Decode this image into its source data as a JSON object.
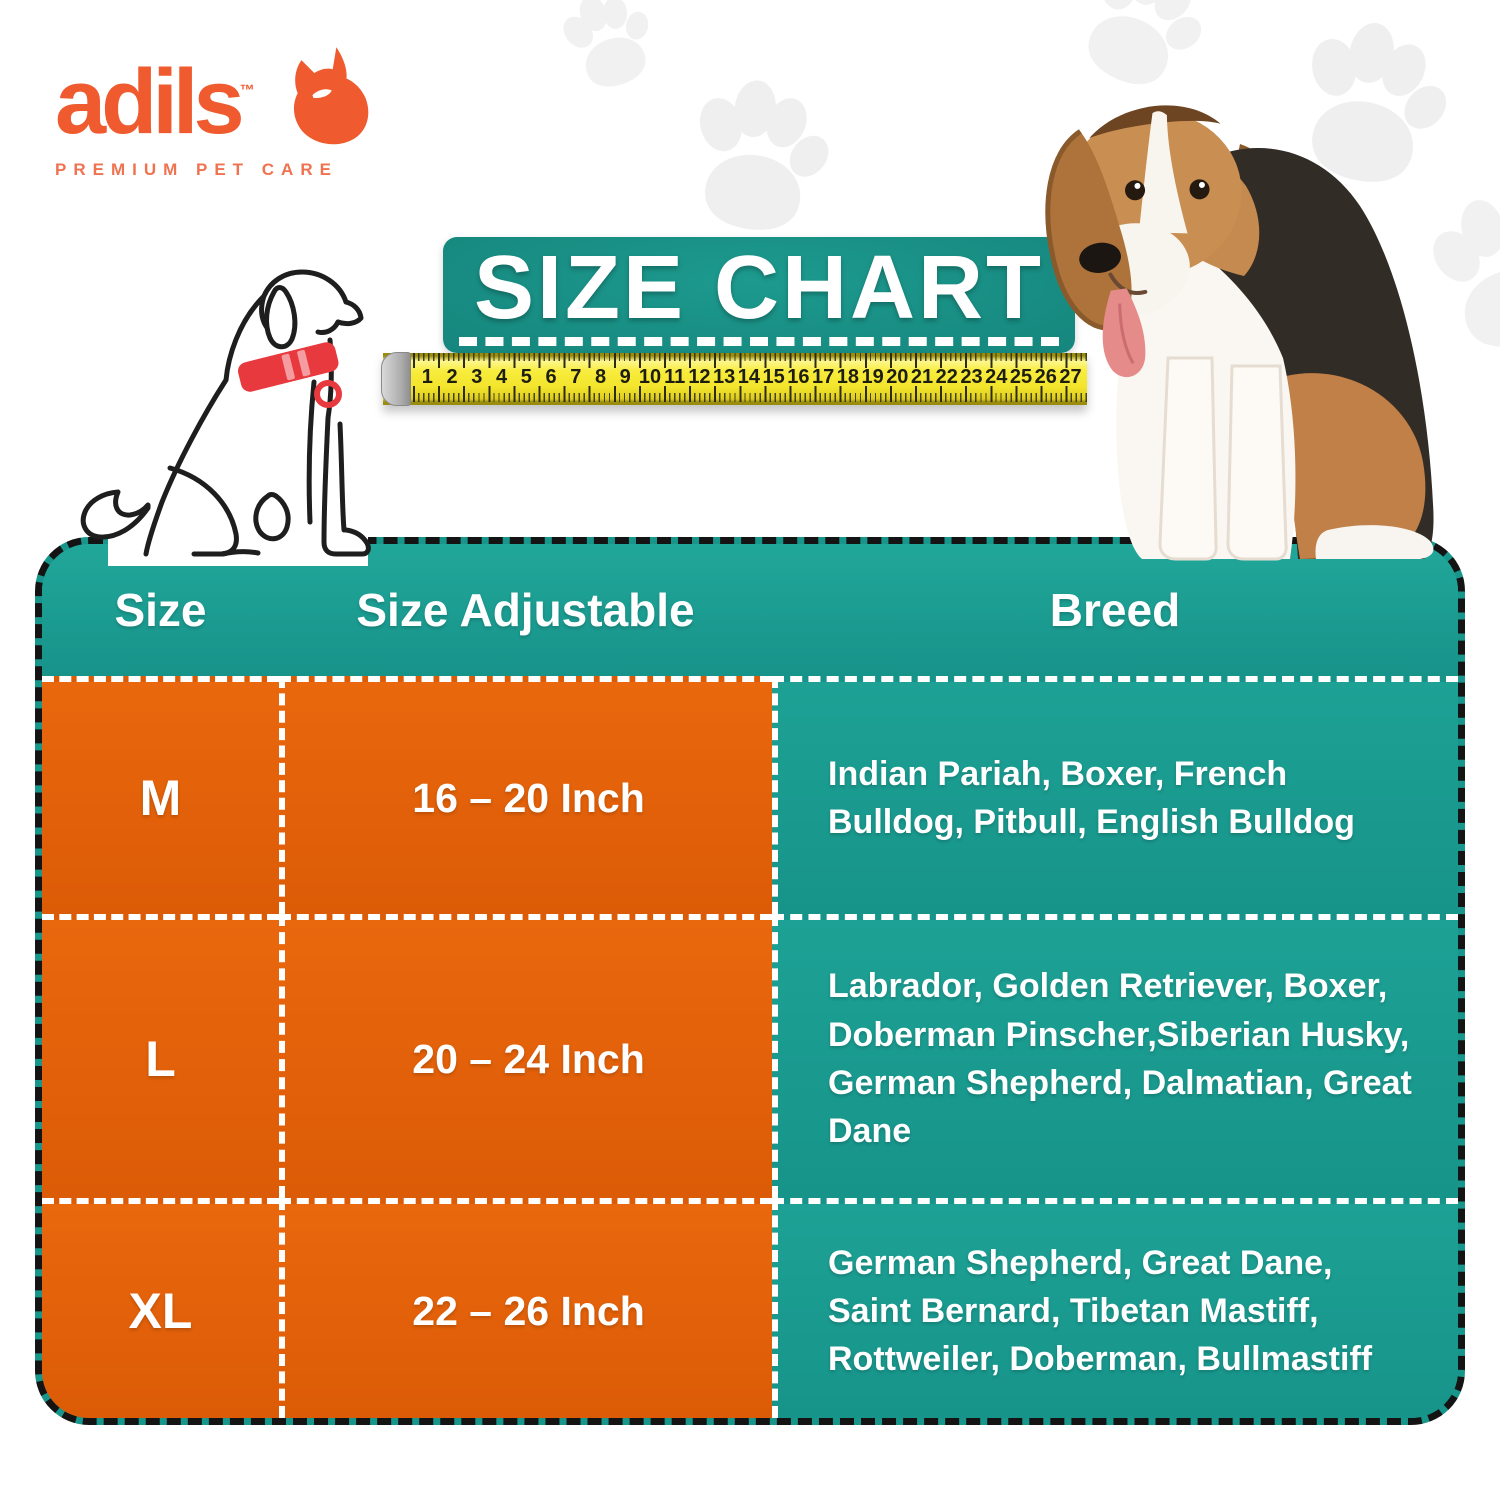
{
  "brand": {
    "name": "adils",
    "tm": "™",
    "tagline": "PREMIUM PET CARE"
  },
  "banner": {
    "title": "SIZE CHART"
  },
  "ruler": {
    "numbers": [
      "1",
      "2",
      "3",
      "4",
      "5",
      "6",
      "7",
      "8",
      "9",
      "10",
      "11",
      "12",
      "13",
      "14",
      "15",
      "16",
      "17",
      "18",
      "19",
      "20",
      "21",
      "22",
      "23",
      "24",
      "25",
      "26",
      "27"
    ]
  },
  "table": {
    "headers": [
      "Size",
      "Size Adjustable",
      "Breed"
    ],
    "rows": [
      {
        "size": "M",
        "adjustable": "16 – 20 Inch",
        "breed": "Indian Pariah, Boxer, French Bulldog, Pitbull, English Bulldog"
      },
      {
        "size": "L",
        "adjustable": "20 – 24 Inch",
        "breed": "Labrador, Golden Retriever, Boxer, Doberman Pinscher,Siberian Husky, German Shepherd, Dalmatian, Great Dane"
      },
      {
        "size": "XL",
        "adjustable": "22 – 26 Inch",
        "breed": "German Shepherd, Great Dane, Saint Bernard, Tibetan Mastiff, Rottweiler, Doberman, Bullmastiff"
      }
    ]
  },
  "chart_data": {
    "type": "table",
    "title": "SIZE CHART",
    "columns": [
      "Size",
      "Size Adjustable",
      "Breed"
    ],
    "rows": [
      [
        "M",
        "16 – 20 Inch",
        "Indian Pariah, Boxer, French Bulldog, Pitbull, English Bulldog"
      ],
      [
        "L",
        "20 – 24 Inch",
        "Labrador, Golden Retriever, Boxer, Doberman Pinscher,Siberian Husky, German Shepherd, Dalmatian, Great Dane"
      ],
      [
        "XL",
        "22 – 26 Inch",
        "German Shepherd, Great Dane, Saint Bernard, Tibetan Mastiff, Rottweiler, Doberman, Bullmastiff"
      ]
    ]
  },
  "colors": {
    "table_teal": "#18968c",
    "banner_teal": "#15857c",
    "cell_orange": "#e2600b",
    "logo_orange": "#ef5a2e",
    "tape_yellow": "#f3e52c",
    "collar_red": "#e8393e",
    "dash_black": "#141414",
    "paw_gray": "#f1f1f1"
  }
}
